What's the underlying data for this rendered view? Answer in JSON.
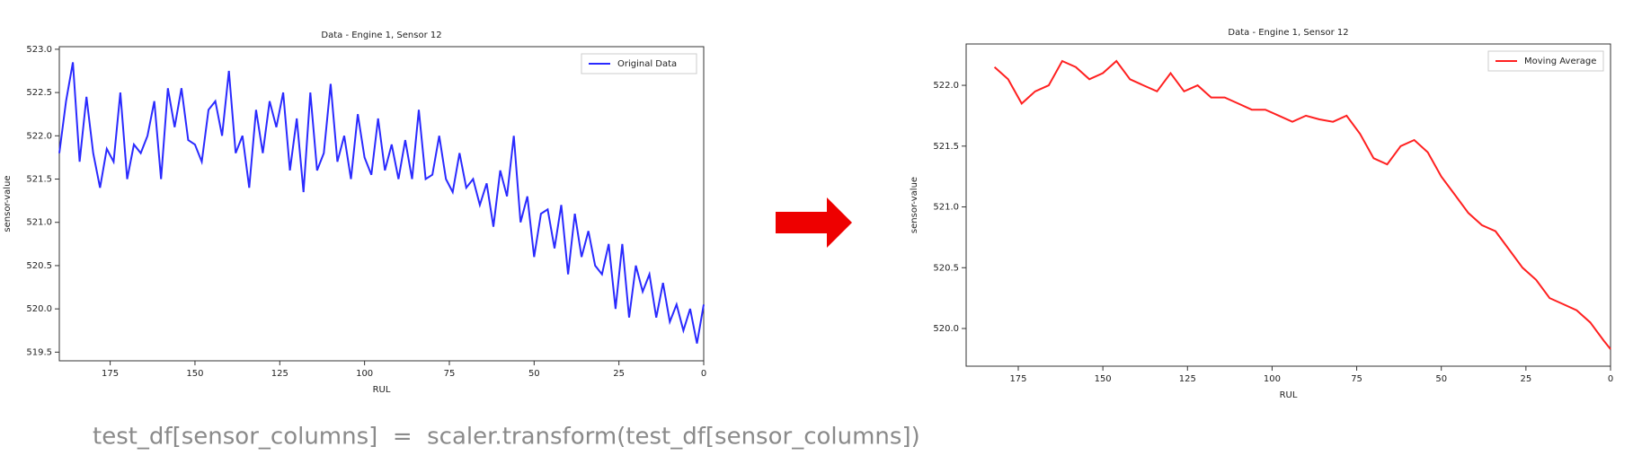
{
  "chart_data": [
    {
      "type": "line",
      "title": "Data - Engine 1, Sensor 12",
      "xlabel": "RUL",
      "ylabel": "sensor-value",
      "xlim": [
        190,
        0
      ],
      "ylim": [
        519.4,
        523.03
      ],
      "xticks": [
        175,
        150,
        125,
        100,
        75,
        50,
        25,
        0
      ],
      "yticks": [
        519.5,
        {
          "value": 520,
          "label": "520.0"
        },
        520.5,
        {
          "value": 521,
          "label": "521.0"
        },
        521.5,
        {
          "value": 522,
          "label": "522.0"
        },
        522.5,
        {
          "value": 523,
          "label": "523.0"
        }
      ],
      "legend": "upper right",
      "grid": false,
      "x": [
        190,
        188,
        186,
        184,
        182,
        180,
        178,
        176,
        174,
        172,
        170,
        168,
        166,
        164,
        162,
        160,
        158,
        156,
        154,
        152,
        150,
        148,
        146,
        144,
        142,
        140,
        138,
        136,
        134,
        132,
        130,
        128,
        126,
        124,
        122,
        120,
        118,
        116,
        114,
        112,
        110,
        108,
        106,
        104,
        102,
        100,
        98,
        96,
        94,
        92,
        90,
        88,
        86,
        84,
        82,
        80,
        78,
        76,
        74,
        72,
        70,
        68,
        66,
        64,
        62,
        60,
        58,
        56,
        54,
        52,
        50,
        48,
        46,
        44,
        42,
        40,
        38,
        36,
        34,
        32,
        30,
        28,
        26,
        24,
        22,
        20,
        18,
        16,
        14,
        12,
        10,
        8,
        6,
        4,
        2,
        0
      ],
      "series": [
        {
          "name": "Original Data",
          "color": "#2a2aff",
          "values": [
            521.8,
            522.4,
            522.85,
            521.7,
            522.45,
            521.8,
            521.4,
            521.85,
            521.7,
            522.5,
            521.5,
            521.9,
            521.8,
            522.0,
            522.4,
            521.5,
            522.55,
            522.1,
            522.55,
            521.95,
            521.9,
            521.7,
            522.3,
            522.4,
            522.0,
            522.75,
            521.8,
            522.0,
            521.4,
            522.3,
            521.8,
            522.4,
            522.1,
            522.5,
            521.6,
            522.2,
            521.35,
            522.5,
            521.6,
            521.8,
            522.6,
            521.7,
            522.0,
            521.5,
            522.25,
            521.75,
            521.55,
            522.2,
            521.6,
            521.9,
            521.5,
            521.95,
            521.5,
            522.3,
            521.5,
            521.55,
            522.0,
            521.5,
            521.35,
            521.8,
            521.4,
            521.5,
            521.2,
            521.45,
            520.95,
            521.6,
            521.3,
            522.0,
            521.0,
            521.3,
            520.6,
            521.1,
            521.15,
            520.7,
            521.2,
            520.4,
            521.1,
            520.6,
            520.9,
            520.5,
            520.4,
            520.75,
            520.0,
            520.75,
            519.9,
            520.5,
            520.2,
            520.4,
            519.9,
            520.3,
            519.85,
            520.05,
            519.75,
            520.0,
            519.6,
            520.05
          ]
        }
      ]
    },
    {
      "type": "line",
      "title": "Data - Engine 1, Sensor 12",
      "xlabel": "RUL",
      "ylabel": "sensor-value",
      "xlim": [
        190.4,
        0
      ],
      "ylim": [
        519.69,
        522.34
      ],
      "xticks": [
        175,
        150,
        125,
        100,
        75,
        50,
        25,
        0
      ],
      "yticks": [
        {
          "value": 520,
          "label": "520.0"
        },
        520.5,
        {
          "value": 521,
          "label": "521.0"
        },
        521.5,
        {
          "value": 522,
          "label": "522.0"
        }
      ],
      "legend": "upper right",
      "grid": false,
      "x": [
        182,
        178,
        174,
        170,
        166,
        162,
        158,
        154,
        150,
        146,
        142,
        138,
        134,
        130,
        126,
        122,
        118,
        114,
        110,
        106,
        102,
        98,
        94,
        90,
        86,
        82,
        78,
        74,
        70,
        66,
        62,
        58,
        54,
        50,
        46,
        42,
        38,
        34,
        30,
        26,
        22,
        18,
        14,
        10,
        6,
        2,
        0
      ],
      "series": [
        {
          "name": "Moving Average",
          "color": "#ff2020",
          "values": [
            522.15,
            522.05,
            521.85,
            521.95,
            522.0,
            522.2,
            522.15,
            522.05,
            522.1,
            522.2,
            522.05,
            522.0,
            521.95,
            522.1,
            521.95,
            522.0,
            521.9,
            521.9,
            521.85,
            521.8,
            521.8,
            521.75,
            521.7,
            521.75,
            521.72,
            521.7,
            521.75,
            521.6,
            521.4,
            521.35,
            521.5,
            521.55,
            521.45,
            521.25,
            521.1,
            520.95,
            520.85,
            520.8,
            520.65,
            520.5,
            520.4,
            520.25,
            520.2,
            520.15,
            520.05,
            519.9,
            519.83
          ]
        }
      ]
    }
  ],
  "code": "test_df[sensor_columns]  =  scaler.transform(test_df[sensor_columns])"
}
